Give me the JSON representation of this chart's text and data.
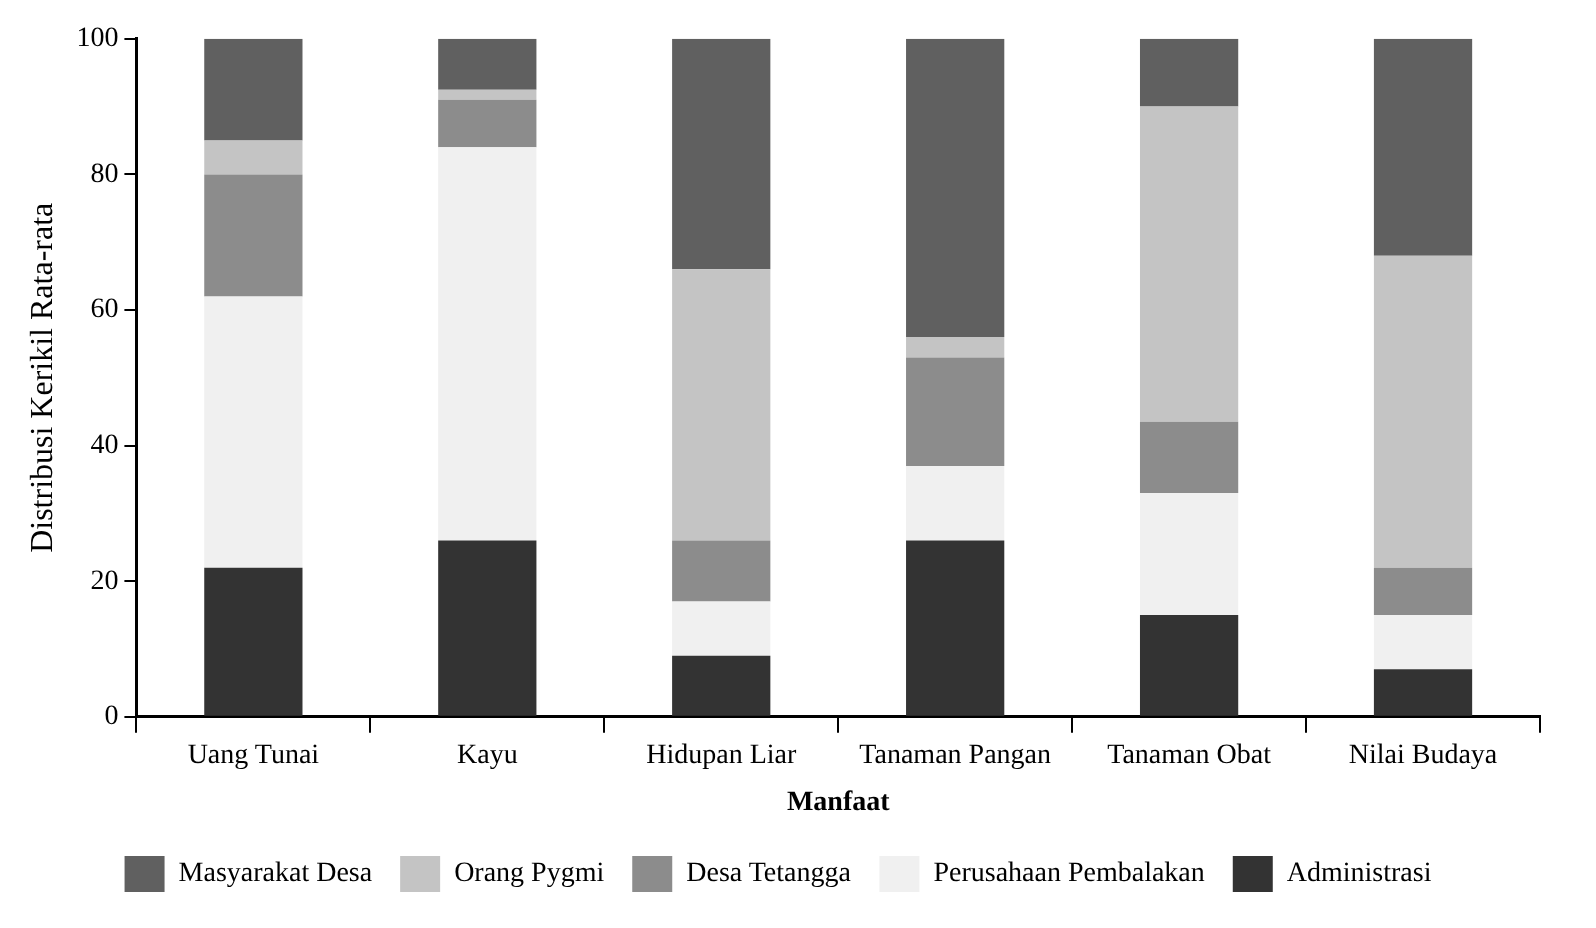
{
  "chart_data": {
    "type": "bar",
    "stacked": true,
    "xlabel": "Manfaat",
    "ylabel": "Distribusi Kerikil Rata-rata",
    "categories": [
      "Uang Tunai",
      "Kayu",
      "Hidupan Liar",
      "Tanaman Pangan",
      "Tanaman Obat",
      "Nilai Budaya"
    ],
    "series": [
      {
        "name": "Administrasi",
        "color": "#333333",
        "values": [
          22,
          26,
          9,
          26,
          15,
          7
        ]
      },
      {
        "name": "Perusahaan Pembalakan",
        "color": "#f0f0f0",
        "values": [
          40,
          58,
          8,
          11,
          18,
          8
        ]
      },
      {
        "name": "Desa Tetangga",
        "color": "#8c8c8c",
        "values": [
          18,
          7,
          9,
          16,
          10.5,
          7
        ]
      },
      {
        "name": "Orang Pygmi",
        "color": "#c4c4c4",
        "values": [
          5,
          1.5,
          40,
          3,
          46.5,
          46
        ]
      },
      {
        "name": "Masyarakat Desa",
        "color": "#606060",
        "values": [
          15,
          7.5,
          34,
          44,
          10,
          32
        ]
      }
    ],
    "ylim": [
      0,
      100
    ],
    "yticks": [
      0,
      20,
      40,
      60,
      80,
      100
    ],
    "grid": false,
    "legend": "bottom"
  }
}
